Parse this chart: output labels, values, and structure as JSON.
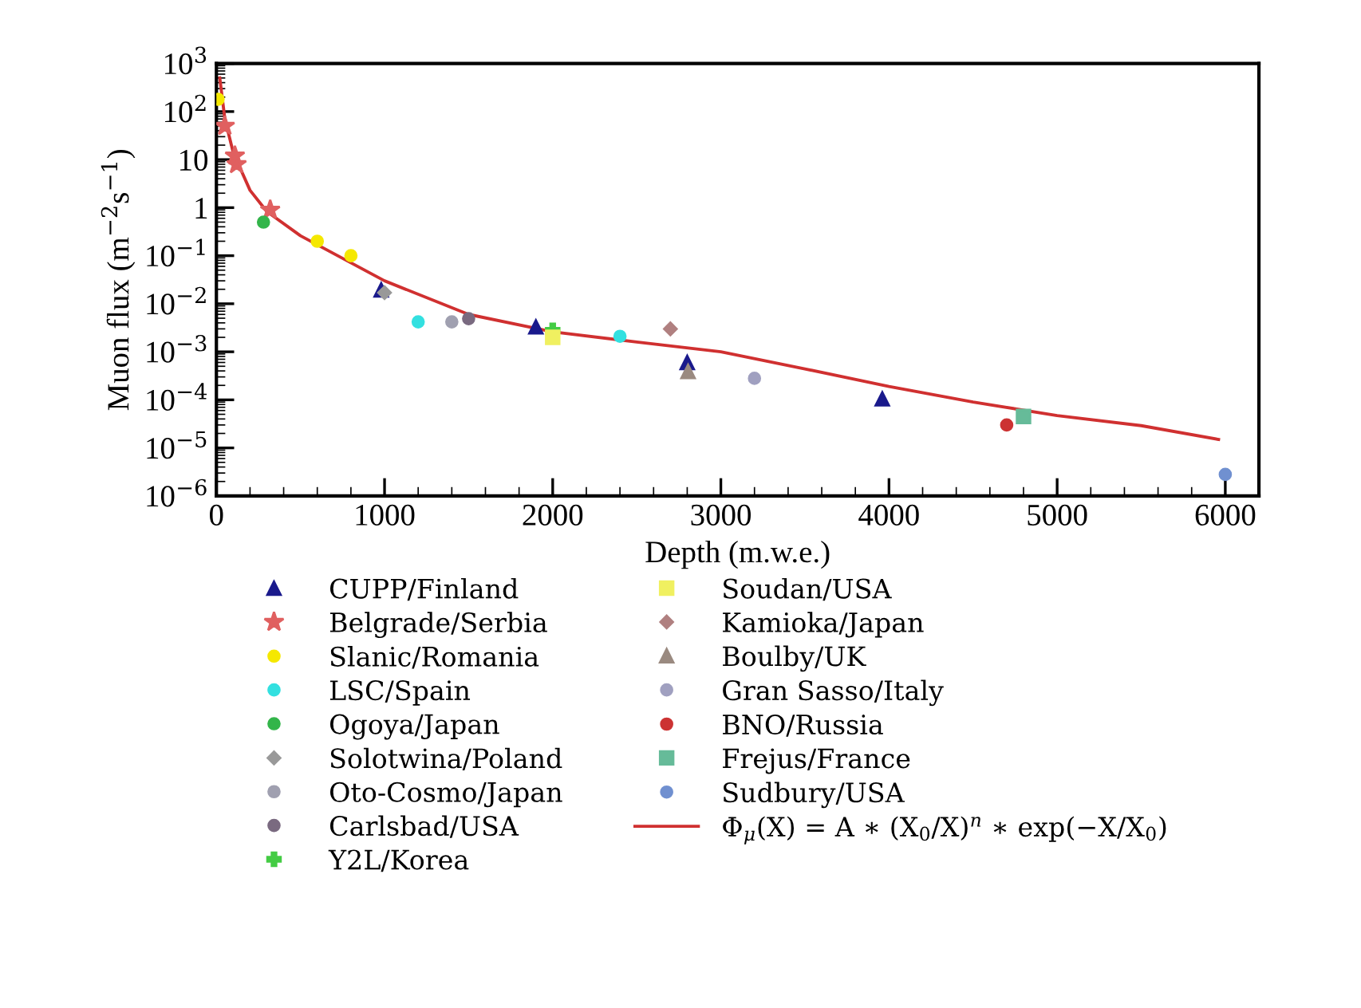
{
  "chart_data": {
    "type": "scatter",
    "xlabel": "Depth (m.w.e.)",
    "ylabel": "Muon flux (m$^{−2}$s$^{−1}$)",
    "log": "y",
    "xlim": [
      0,
      6200
    ],
    "xticks": [
      0,
      1000,
      2000,
      3000,
      4000,
      5000,
      6000
    ],
    "ylim": [
      1e-06,
      1000
    ],
    "yticks": [
      {
        "value": 1e-06,
        "label": "10$^{−6}$"
      },
      {
        "value": 1e-05,
        "label": "10$^{−5}$"
      },
      {
        "value": 0.0001,
        "label": "10$^{−4}$"
      },
      {
        "value": 0.001,
        "label": "10$^{−3}$"
      },
      {
        "value": 0.01,
        "label": "10$^{−2}$"
      },
      {
        "value": 0.1,
        "label": "10$^{−1}$"
      },
      {
        "value": 1,
        "label": "1"
      },
      {
        "value": 10,
        "label": "10"
      },
      {
        "value": 100,
        "label": "10$^{2}$"
      },
      {
        "value": 1000,
        "label": "10$^{3}$"
      }
    ],
    "grid": false,
    "legend": "bottom",
    "series": [
      {
        "name": "CUPP/Finland",
        "color": "#1a1a8c",
        "marker": "triangle",
        "x": [
          980,
          1900,
          2800,
          3960
        ],
        "values": [
          0.0195,
          0.0033,
          0.0006,
          0.000105
        ]
      },
      {
        "name": "Belgrade/Serbia",
        "color": "#e06060",
        "marker": "star",
        "x": [
          50,
          110,
          120,
          320
        ],
        "values": [
          50,
          12,
          8,
          0.9
        ]
      },
      {
        "name": "Slanic/Romania",
        "color": "#f5e800",
        "marker": "circle",
        "x": [
          10,
          600,
          800
        ],
        "values": [
          180,
          0.2,
          0.1
        ]
      },
      {
        "name": "LSC/Spain",
        "color": "#33e0e0",
        "marker": "circle",
        "x": [
          1200,
          2400
        ],
        "values": [
          0.0042,
          0.0021
        ]
      },
      {
        "name": "Ogoya/Japan",
        "color": "#33b54a",
        "marker": "circle",
        "x": [
          280
        ],
        "values": [
          0.5
        ]
      },
      {
        "name": "Solotwina/Poland",
        "color": "#999999",
        "marker": "diamond",
        "x": [
          1000
        ],
        "values": [
          0.017
        ]
      },
      {
        "name": "Oto-Cosmo/Japan",
        "color": "#a0a0b0",
        "marker": "circle",
        "x": [
          1400
        ],
        "values": [
          0.0042
        ]
      },
      {
        "name": "Carlsbad/USA",
        "color": "#7a6a80",
        "marker": "circle",
        "x": [
          1500
        ],
        "values": [
          0.0049
        ]
      },
      {
        "name": "Y2L/Korea",
        "color": "#44cc44",
        "marker": "cross",
        "x": [
          2000
        ],
        "values": [
          0.0028
        ]
      },
      {
        "name": "Soudan/USA",
        "color": "#f0f060",
        "marker": "square",
        "x": [
          2000
        ],
        "values": [
          0.002
        ]
      },
      {
        "name": "Kamioka/Japan",
        "color": "#b08080",
        "marker": "diamond",
        "x": [
          2700
        ],
        "values": [
          0.003
        ]
      },
      {
        "name": "Boulby/UK",
        "color": "#9a8a80",
        "marker": "triangle",
        "x": [
          2805
        ],
        "values": [
          0.00039
        ]
      },
      {
        "name": "Gran Sasso/Italy",
        "color": "#a0a0c0",
        "marker": "circle",
        "x": [
          3200
        ],
        "values": [
          0.00028
        ]
      },
      {
        "name": "BNO/Russia",
        "color": "#cc3333",
        "marker": "circle",
        "x": [
          4700
        ],
        "values": [
          3e-05
        ]
      },
      {
        "name": "Frejus/France",
        "color": "#66bb99",
        "marker": "square",
        "x": [
          4800
        ],
        "values": [
          4.5e-05
        ]
      },
      {
        "name": "Sudbury/USA",
        "color": "#7090d0",
        "marker": "circle",
        "x": [
          6000
        ],
        "values": [
          2.8e-06
        ]
      },
      {
        "name": "Φ$_{μ}$(X) = A ∗ (X$_{0}$/X)$^{n}$ ∗ exp(−X/X$_{0}$)",
        "type": "line",
        "color": "#d03030",
        "marker": "none",
        "line_style": "solid",
        "x": [
          20,
          50,
          100,
          200,
          300,
          500,
          1000,
          1500,
          2000,
          2500,
          3000,
          3500,
          4000,
          4500,
          5000,
          5500,
          5960
        ],
        "values": [
          500,
          72,
          14,
          2.3,
          0.83,
          0.26,
          0.03,
          0.006,
          0.0026,
          0.0016,
          0.001,
          0.00044,
          0.00019,
          9e-05,
          4.7e-05,
          2.9e-05,
          1.5e-05
        ]
      }
    ]
  }
}
